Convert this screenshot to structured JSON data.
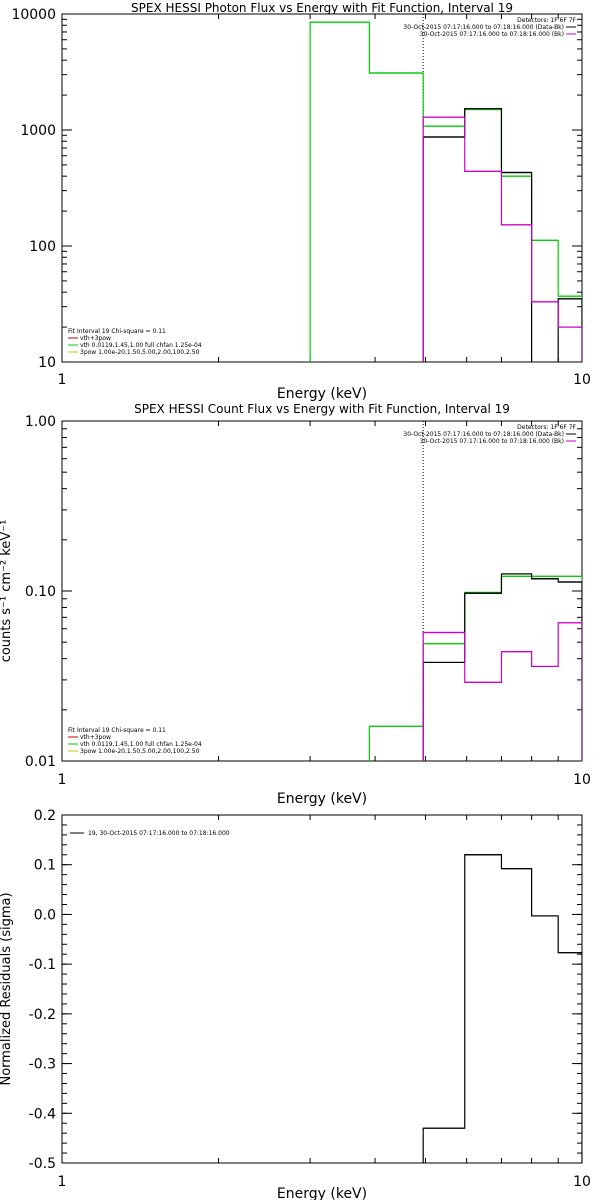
{
  "chart_data": [
    {
      "type": "line",
      "title": "SPEX HESSI Photon Flux vs Energy with Fit Function, Interval 19",
      "xlabel": "Energy (keV)",
      "ylabel": "",
      "xscale": "log",
      "yscale": "log",
      "xlim": [
        1,
        10
      ],
      "ylim": [
        10,
        10000
      ],
      "x_tick_labels": [
        "1",
        "10"
      ],
      "y_tick_labels": [
        "10",
        "100",
        "1000",
        "10000"
      ],
      "x_tick_values": [
        1,
        10
      ],
      "y_tick_values": [
        10,
        100,
        1000,
        10000
      ],
      "vline_x": 4.95,
      "legend_top_right": [
        "Detectors: 1F 6F 7F",
        "30-Oct-2015 07:17:16.000 to 07:18:16.000 (Data-Bk)",
        "30-Oct-2015 07:17:16.000 to 07:18:16.000 (Bk)"
      ],
      "legend_top_right_colors": [
        "",
        "#000000",
        "#cc00cc"
      ],
      "legend_bottom_left": [
        "Fit Interval 19   Chi-square = 0.11",
        "vth+3pow",
        "vth 0.0119,1.45,1.00  full chfan 1.25e-04",
        "3pow 1.00e-20,1.50,5.00,2.00,100,2.50"
      ],
      "legend_bottom_left_colors": [
        "",
        "#cc0000",
        "#00cc00",
        "#cccc00"
      ],
      "series": [
        {
          "color": "#00cc00",
          "bin_edges": [
            3.0,
            3.9,
            4.95,
            5.95,
            7.0,
            8.0,
            9.0,
            10.0
          ],
          "values": [
            8500,
            3100,
            1080,
            1500,
            400,
            112,
            37
          ]
        },
        {
          "color": "#000000",
          "bin_edges": [
            4.95,
            5.95,
            7.0,
            8.0,
            9.0,
            10.0
          ],
          "values": [
            870,
            1530,
            430,
            0,
            35
          ]
        },
        {
          "color": "#cc00cc",
          "bin_edges": [
            4.95,
            5.95,
            7.0,
            8.0,
            9.0,
            10.0
          ],
          "values": [
            1290,
            440,
            152,
            33,
            20
          ]
        }
      ]
    },
    {
      "type": "line",
      "title": "SPEX HESSI Count Flux vs Energy with Fit Function, Interval 19",
      "xlabel": "Energy (keV)",
      "ylabel": "counts s⁻¹ cm⁻² keV⁻¹",
      "xscale": "log",
      "yscale": "log",
      "xlim": [
        1,
        10
      ],
      "ylim": [
        0.01,
        1.0
      ],
      "x_tick_labels": [
        "1",
        "10"
      ],
      "y_tick_labels": [
        "0.01",
        "0.10",
        "1.00"
      ],
      "x_tick_values": [
        1,
        10
      ],
      "y_tick_values": [
        0.01,
        0.1,
        1.0
      ],
      "vline_x": 4.95,
      "legend_top_right": [
        "Detectors: 1F 6F 7F",
        "30-Oct-2015 07:17:16.000 to 07:18:16.000 (Data-Bk)",
        "30-Oct-2015 07:17:16.000 to 07:18:16.000 (Bk)"
      ],
      "legend_top_right_colors": [
        "",
        "#000000",
        "#cc00cc"
      ],
      "legend_bottom_left": [
        "Fit Interval 19   Chi-square = 0.11",
        "vth+3pow",
        "vth 0.0119,1.45,1.00  full chfan 1.25e-04",
        "3pow 1.00e-20,1.50,5.00,2.00,100,2.50"
      ],
      "legend_bottom_left_colors": [
        "",
        "#cc0000",
        "#00cc00",
        "#cccc00"
      ],
      "series": [
        {
          "color": "#00cc00",
          "bin_edges": [
            3.9,
            4.95,
            5.95,
            7.0,
            8.0,
            9.0,
            10.0
          ],
          "values": [
            0.016,
            0.049,
            0.098,
            0.122,
            0.122,
            0.122
          ]
        },
        {
          "color": "#000000",
          "bin_edges": [
            4.95,
            5.95,
            7.0,
            8.0,
            9.0,
            10.0
          ],
          "values": [
            0.038,
            0.097,
            0.126,
            0.118,
            0.113
          ]
        },
        {
          "color": "#cc00cc",
          "bin_edges": [
            4.95,
            5.95,
            7.0,
            8.0,
            9.0,
            10.0
          ],
          "values": [
            0.057,
            0.029,
            0.044,
            0.036,
            0.065
          ]
        }
      ]
    },
    {
      "type": "line",
      "title": "",
      "xlabel": "Energy (keV)",
      "ylabel": "Normalized Residuals (sigma)",
      "xscale": "log",
      "yscale": "linear",
      "xlim": [
        1,
        10
      ],
      "ylim": [
        -0.5,
        0.2
      ],
      "x_tick_labels": [
        "1",
        "10"
      ],
      "y_tick_labels": [
        "0.2",
        "0.1",
        "0.0",
        "-0.1",
        "-0.2",
        "-0.3",
        "-0.4",
        "-0.5"
      ],
      "x_tick_values": [
        1,
        10
      ],
      "y_tick_values": [
        0.2,
        0.1,
        0.0,
        -0.1,
        -0.2,
        -0.3,
        -0.4,
        -0.5
      ],
      "legend_top_left": [
        "19, 30-Oct-2015 07:17:16.000 to 07:18:16.000"
      ],
      "series": [
        {
          "color": "#000000",
          "bin_edges": [
            4.95,
            5.95,
            7.0,
            8.0,
            9.0,
            10.0
          ],
          "values": [
            -0.43,
            0.12,
            0.092,
            -0.003,
            -0.077
          ]
        }
      ]
    }
  ]
}
